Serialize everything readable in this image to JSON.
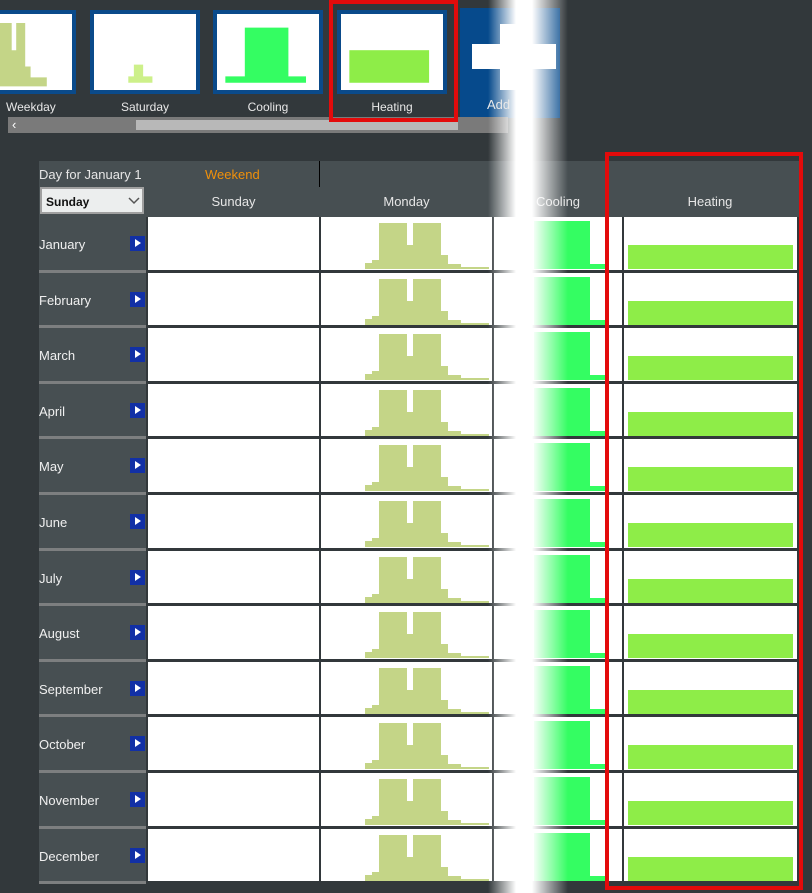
{
  "profiles": [
    {
      "label": "Weekday"
    },
    {
      "label": "Saturday"
    },
    {
      "label": "Cooling"
    },
    {
      "label": "Heating",
      "selected": true
    }
  ],
  "add_label": "Add",
  "scroll_left_icon": "chevron-left-icon",
  "grid": {
    "day_for_label": "Day for January 1",
    "day_type": "Weekend",
    "day_select_value": "Sunday",
    "columns": [
      "Sunday",
      "Monday",
      "Cooling",
      "Heating"
    ],
    "months": [
      "January",
      "February",
      "March",
      "April",
      "May",
      "June",
      "July",
      "August",
      "September",
      "October",
      "November",
      "December"
    ]
  },
  "colors": {
    "weekday": "#c4d587",
    "saturday": "#cdf08a",
    "cooling": "#34fd62",
    "heating": "#8eed48",
    "highlight": "#e30b0b",
    "tile_border": "#0a4a8a",
    "weekend_text": "#f0900a"
  }
}
